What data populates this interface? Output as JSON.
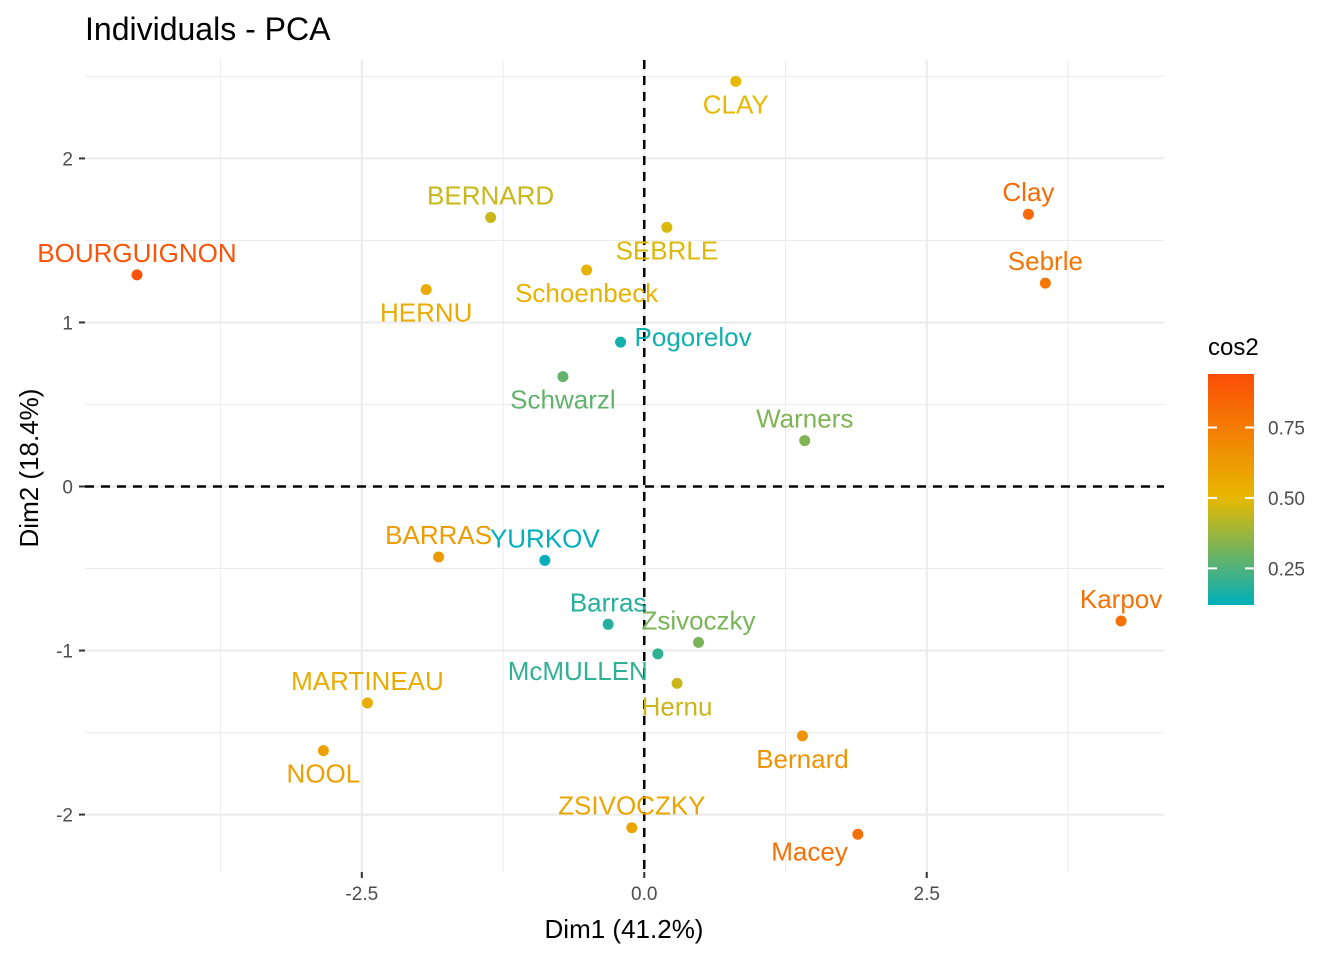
{
  "chart_data": {
    "type": "scatter",
    "title": "Individuals - PCA",
    "xlabel": "Dim1 (41.2%)",
    "ylabel": "Dim2 (18.4%)",
    "xlim": [
      -4.95,
      4.6
    ],
    "ylim": [
      -2.35,
      2.6
    ],
    "x_ticks": [
      -2.5,
      0.0,
      2.5
    ],
    "x_tick_labels": [
      "-2.5",
      "0.0",
      "2.5"
    ],
    "y_ticks": [
      -2,
      -1,
      0,
      1,
      2
    ],
    "y_tick_labels": [
      "-2",
      "-1",
      "0",
      "1",
      "2"
    ],
    "grid": true,
    "reference_lines": {
      "x": 0,
      "y": 0,
      "style": "dashed"
    },
    "color_scale": {
      "title": "cos2",
      "min": 0.12,
      "max": 0.94,
      "ticks": [
        0.25,
        0.5,
        0.75
      ],
      "tick_labels": [
        "0.25",
        "0.50",
        "0.75"
      ],
      "stops": [
        {
          "value": 0.12,
          "color": "#00AFBB"
        },
        {
          "value": 0.5,
          "color": "#E7B800"
        },
        {
          "value": 0.94,
          "color": "#FC4E07"
        }
      ]
    },
    "legend_position": "right",
    "points": [
      {
        "name": "CLAY",
        "x": 0.81,
        "y": 2.47,
        "cos2": 0.5,
        "label_pos": "below"
      },
      {
        "name": "Clay",
        "x": 3.4,
        "y": 1.66,
        "cos2": 0.82,
        "label_pos": "above"
      },
      {
        "name": "BERNARD",
        "x": -1.36,
        "y": 1.64,
        "cos2": 0.45,
        "label_pos": "above"
      },
      {
        "name": "SEBRLE",
        "x": 0.2,
        "y": 1.58,
        "cos2": 0.48,
        "label_pos": "below"
      },
      {
        "name": "Sebrle",
        "x": 3.55,
        "y": 1.24,
        "cos2": 0.78,
        "label_pos": "above"
      },
      {
        "name": "BOURGUIGNON",
        "x": -4.49,
        "y": 1.29,
        "cos2": 0.92,
        "label_pos": "above"
      },
      {
        "name": "HERNU",
        "x": -1.93,
        "y": 1.2,
        "cos2": 0.56,
        "label_pos": "below"
      },
      {
        "name": "Schoenbeck",
        "x": -0.51,
        "y": 1.32,
        "cos2": 0.52,
        "label_pos": "below"
      },
      {
        "name": "Pogorelov",
        "x": -0.21,
        "y": 0.88,
        "cos2": 0.15,
        "label_pos": "right"
      },
      {
        "name": "Schwarzl",
        "x": -0.72,
        "y": 0.67,
        "cos2": 0.28,
        "label_pos": "below"
      },
      {
        "name": "Warners",
        "x": 1.42,
        "y": 0.28,
        "cos2": 0.33,
        "label_pos": "above"
      },
      {
        "name": "BARRAS",
        "x": -1.82,
        "y": -0.43,
        "cos2": 0.62,
        "label_pos": "above"
      },
      {
        "name": "YURKOV",
        "x": -0.88,
        "y": -0.45,
        "cos2": 0.12,
        "label_pos": "above"
      },
      {
        "name": "Karpov",
        "x": 4.22,
        "y": -0.82,
        "cos2": 0.8,
        "label_pos": "above"
      },
      {
        "name": "Barras",
        "x": -0.32,
        "y": -0.84,
        "cos2": 0.18,
        "label_pos": "above"
      },
      {
        "name": "Zsivoczky",
        "x": 0.48,
        "y": -0.95,
        "cos2": 0.32,
        "label_pos": "above"
      },
      {
        "name": "McMULLEN",
        "x": 0.12,
        "y": -1.02,
        "cos2": 0.2,
        "label_pos": "below-left"
      },
      {
        "name": "Hernu",
        "x": 0.29,
        "y": -1.2,
        "cos2": 0.45,
        "label_pos": "below"
      },
      {
        "name": "MARTINEAU",
        "x": -2.45,
        "y": -1.32,
        "cos2": 0.55,
        "label_pos": "above"
      },
      {
        "name": "Bernard",
        "x": 1.4,
        "y": -1.52,
        "cos2": 0.65,
        "label_pos": "below"
      },
      {
        "name": "NOOL",
        "x": -2.84,
        "y": -1.61,
        "cos2": 0.6,
        "label_pos": "below"
      },
      {
        "name": "ZSIVOCZKY",
        "x": -0.11,
        "y": -2.08,
        "cos2": 0.58,
        "label_pos": "above"
      },
      {
        "name": "Macey",
        "x": 1.89,
        "y": -2.12,
        "cos2": 0.8,
        "label_pos": "below-left"
      }
    ]
  }
}
